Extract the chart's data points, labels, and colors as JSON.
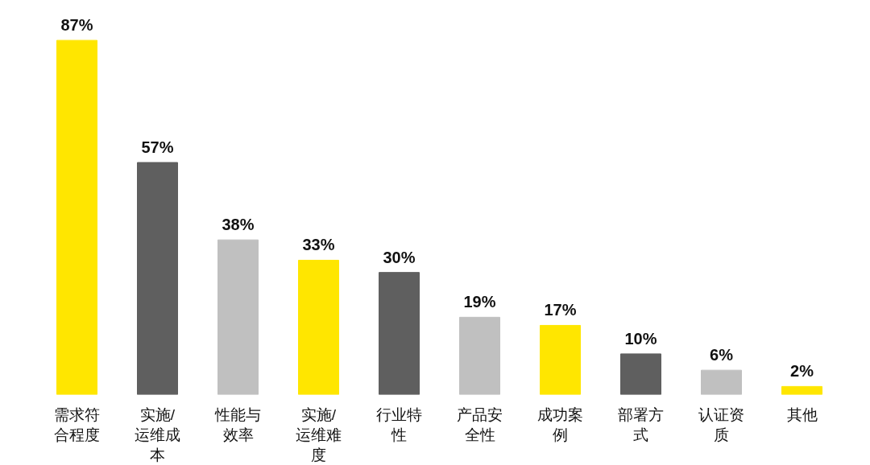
{
  "chart_data": {
    "type": "bar",
    "categories": [
      "需求符合程度",
      "实施/运维成本",
      "性能与效率",
      "实施/运维难度",
      "行业特性",
      "产品安全性",
      "成功案例",
      "部署方式",
      "认证资质",
      "其他"
    ],
    "values": [
      87,
      57,
      38,
      33,
      30,
      19,
      17,
      10,
      6,
      2
    ],
    "value_labels": [
      "87%",
      "57%",
      "38%",
      "33%",
      "30%",
      "19%",
      "17%",
      "10%",
      "6%",
      "2%"
    ],
    "colors": [
      "#ffe600",
      "#5f5f5f",
      "#c0c0c0",
      "#ffe600",
      "#5f5f5f",
      "#c0c0c0",
      "#ffe600",
      "#5f5f5f",
      "#c0c0c0",
      "#ffe600"
    ],
    "tick_labels": "x"
  }
}
